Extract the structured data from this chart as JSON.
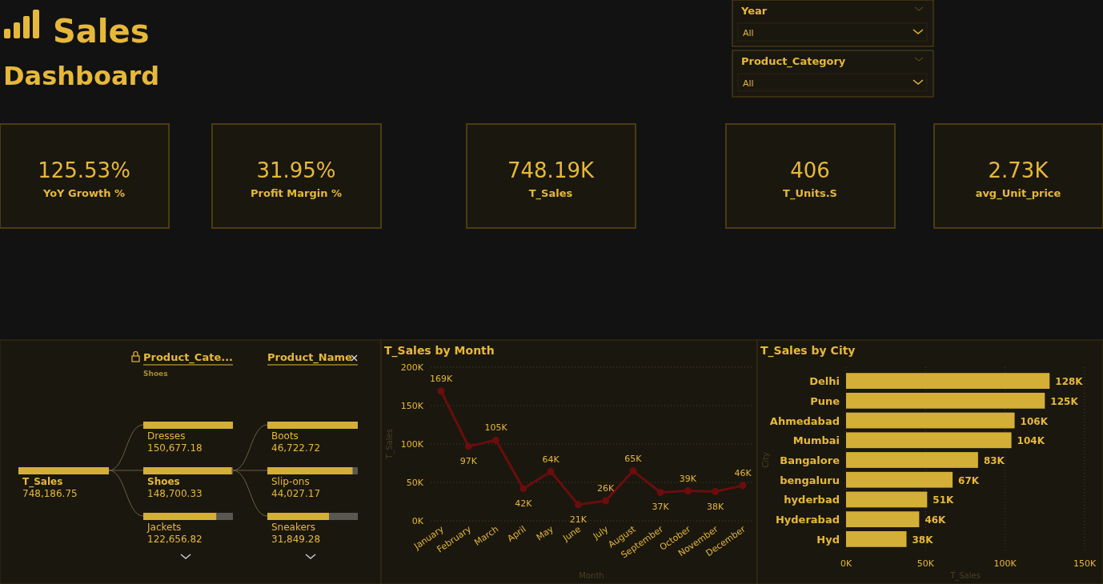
{
  "chart_data": [
    {
      "type": "other",
      "title": "Sales Dashboard",
      "annotations": [
        "Year",
        "All",
        "Product_Category",
        "All"
      ],
      "categories": [
        "YoY Growth %",
        "Profit Margin %",
        "T_Sales",
        "T_Units.S",
        "avg_Unit_price"
      ],
      "value_labels": [
        "125.53%",
        "31.95%",
        "748.19K",
        "406",
        "2.73K"
      ]
    },
    {
      "type": "other",
      "annotations": [
        "Product_Cate...",
        "Shoes",
        "Product_Name"
      ],
      "categories": [
        "T_Sales",
        "Dresses",
        "Shoes",
        "Jackets",
        "Boots",
        "Slip-ons",
        "Sneakers"
      ],
      "values": [
        748186.75,
        150677.18,
        148700.33,
        122656.82,
        46722.72,
        44027.17,
        31849.28
      ],
      "value_labels": [
        "748,186.75",
        "150,677.18",
        "148,700.33",
        "122,656.82",
        "46,722.72",
        "44,027.17",
        "31,849.28"
      ]
    },
    {
      "type": "line",
      "title": "T_Sales by Month",
      "xlabel": "Month",
      "ylabel": "T_Sales",
      "categories": [
        "January",
        "February",
        "March",
        "April",
        "May",
        "June",
        "July",
        "August",
        "September",
        "October",
        "November",
        "December"
      ],
      "series": [
        {
          "color": "#6b0d0d",
          "values": [
            169000,
            97000,
            105000,
            42000,
            64000,
            21000,
            26000,
            65000,
            37000,
            39000,
            38000,
            46000
          ],
          "value_labels": [
            "169K",
            "97K",
            "105K",
            "42K",
            "64K",
            "21K",
            "26K",
            "65K",
            "37K",
            "39K",
            "38K",
            "46K"
          ]
        }
      ],
      "ylim": [
        0,
        200000
      ],
      "yticks": [
        {
          "value": 0,
          "label": "0K"
        },
        {
          "value": 50000,
          "label": "50K"
        },
        {
          "value": 100000,
          "label": "100K"
        },
        {
          "value": 150000,
          "label": "150K"
        },
        {
          "value": 200000,
          "label": "200K"
        }
      ],
      "grid": "y",
      "marker": "circle",
      "line_style": "solid"
    },
    {
      "type": "bar",
      "orientation": "horizontal",
      "title": "T_Sales by City",
      "xlabel": "T_Sales",
      "ylabel": "City",
      "categories": [
        "Delhi",
        "Pune",
        "Ahmedabad",
        "Mumbai",
        "Bangalore",
        "bengaluru",
        "hyderbad",
        "Hyderabad",
        "Hyd"
      ],
      "values": [
        128000,
        125000,
        106000,
        104000,
        83000,
        67000,
        51000,
        46000,
        38000
      ],
      "value_labels": [
        "128K",
        "125K",
        "106K",
        "104K",
        "83K",
        "67K",
        "51K",
        "46K",
        "38K"
      ],
      "color": "#d4af37",
      "xlim": [
        0,
        150000
      ],
      "xticks": [
        {
          "value": 0,
          "label": "0K"
        },
        {
          "value": 50000,
          "label": "50K"
        },
        {
          "value": 100000,
          "label": "100K"
        },
        {
          "value": 150000,
          "label": "150K"
        }
      ],
      "grid": "x"
    }
  ]
}
